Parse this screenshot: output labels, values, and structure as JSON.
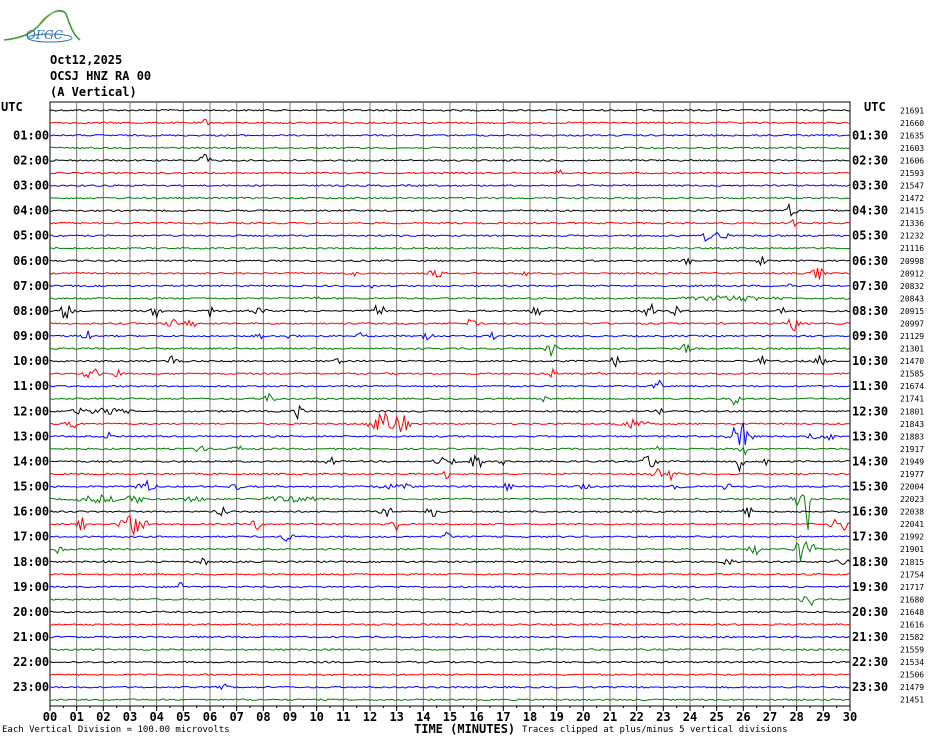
{
  "header": {
    "logo_text": "OFGC",
    "date": "Oct12,2025",
    "station": "OCSJ HNZ RA 00",
    "component": "(A Vertical)"
  },
  "utc_left": "UTC",
  "utc_right": "UTC",
  "footer": {
    "scale": "= 100.00 microvolts",
    "scale_prefix": "Each Vertical Division",
    "xlabel": "TIME (MINUTES)",
    "clip_note": "Traces clipped at plus/minus 5 vertical divisions"
  },
  "chart_data": {
    "type": "line",
    "title": "",
    "xlabel": "TIME (MINUTES)",
    "ylabel": "UTC",
    "xlim": [
      0,
      30
    ],
    "x_ticks": [
      "00",
      "01",
      "02",
      "03",
      "04",
      "05",
      "06",
      "07",
      "08",
      "09",
      "10",
      "11",
      "12",
      "13",
      "14",
      "15",
      "16",
      "17",
      "18",
      "19",
      "20",
      "21",
      "22",
      "23",
      "24",
      "25",
      "26",
      "27",
      "28",
      "29",
      "30"
    ],
    "left_labels": [
      "01:00",
      "02:00",
      "03:00",
      "04:00",
      "05:00",
      "06:00",
      "07:00",
      "08:00",
      "09:00",
      "10:00",
      "11:00",
      "12:00",
      "13:00",
      "14:00",
      "15:00",
      "16:00",
      "17:00",
      "18:00",
      "19:00",
      "20:00",
      "21:00",
      "22:00",
      "23:00"
    ],
    "right_labels": [
      "01:30",
      "02:30",
      "03:30",
      "04:30",
      "05:30",
      "06:30",
      "07:30",
      "08:30",
      "09:30",
      "10:30",
      "11:30",
      "12:30",
      "13:30",
      "14:30",
      "15:30",
      "16:30",
      "17:30",
      "18:30",
      "19:30",
      "20:30",
      "21:30",
      "22:30",
      "23:30"
    ],
    "trace_values": [
      "21691",
      "21660",
      "21635",
      "21603",
      "21606",
      "21593",
      "21547",
      "21472",
      "21415",
      "21336",
      "21232",
      "21116",
      "20998",
      "20912",
      "20832",
      "20843",
      "20915",
      "20997",
      "21129",
      "21301",
      "21470",
      "21585",
      "21674",
      "21741",
      "21801",
      "21843",
      "21883",
      "21917",
      "21949",
      "21977",
      "22004",
      "22023",
      "22038",
      "22041",
      "21992",
      "21901",
      "21815",
      "21754",
      "21717",
      "21680",
      "21648",
      "21616",
      "21582",
      "21559",
      "21534",
      "21506",
      "21479",
      "21451"
    ],
    "trace_colors": [
      "#000000",
      "#ff0000",
      "#0000ff",
      "#008000"
    ],
    "grid": true
  }
}
